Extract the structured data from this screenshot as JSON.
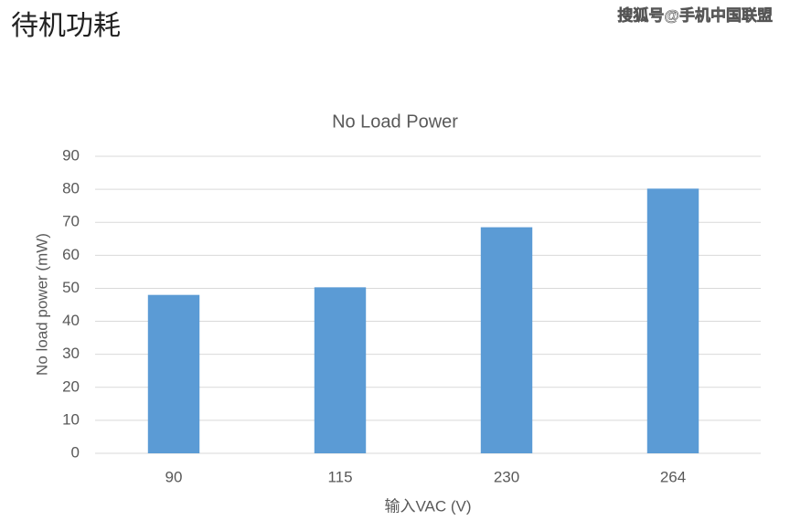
{
  "page_title": "待机功耗",
  "watermark": "搜狐号@手机中国联盟",
  "chart_data": {
    "type": "bar",
    "title": "No Load Power",
    "x_label": "输入VAC (V)",
    "y_label": "No load power (mW)",
    "categories": [
      "90",
      "115",
      "230",
      "264"
    ],
    "values": [
      48,
      50.3,
      68.5,
      80.2
    ],
    "color": "#5b9bd5",
    "ylim": [
      0,
      90
    ],
    "yticks": [
      0,
      10,
      20,
      30,
      40,
      50,
      60,
      70,
      80,
      90
    ],
    "grid": true
  }
}
